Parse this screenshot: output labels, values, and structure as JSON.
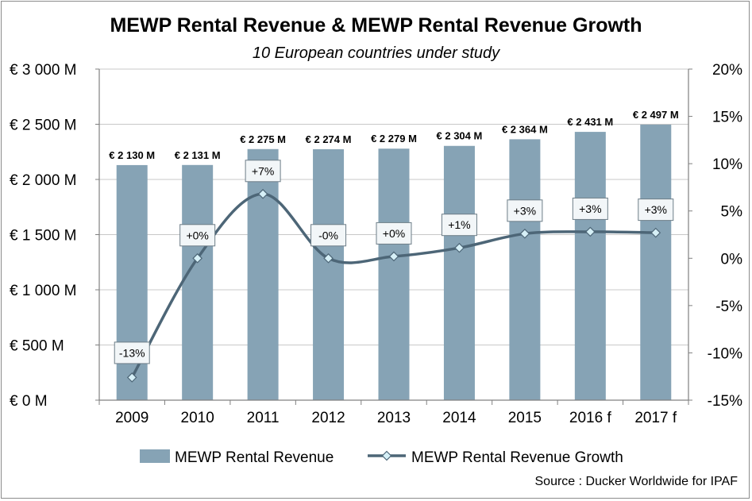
{
  "chart_data": {
    "type": "bar",
    "title": "MEWP Rental Revenue & MEWP Rental Revenue Growth",
    "subtitle": "10 European countries under study",
    "categories": [
      "2009",
      "2010",
      "2011",
      "2012",
      "2013",
      "2014",
      "2015",
      "2016 f",
      "2017 f"
    ],
    "series": [
      {
        "name": "MEWP Rental Revenue",
        "type": "bar",
        "axis": "left",
        "color": "#86a3b5",
        "values": [
          2130,
          2131,
          2275,
          2274,
          2279,
          2304,
          2364,
          2431,
          2497
        ],
        "labels": [
          "€ 2 130 M",
          "€ 2 131 M",
          "€ 2 275 M",
          "€ 2 274 M",
          "€ 2 279 M",
          "€ 2 304 M",
          "€ 2 364 M",
          "€ 2 431 M",
          "€ 2 497 M"
        ]
      },
      {
        "name": "MEWP Rental Revenue Growth",
        "type": "line",
        "axis": "right",
        "color": "#4d6677",
        "marker_color": "#d6f0f7",
        "values": [
          -12.6,
          0.0,
          6.8,
          0.0,
          0.2,
          1.1,
          2.6,
          2.8,
          2.7
        ],
        "labels": [
          "-13%",
          "+0%",
          "+7%",
          "-0%",
          "+0%",
          "+1%",
          "+3%",
          "+3%",
          "+3%"
        ]
      }
    ],
    "y_left": {
      "ylim": [
        0,
        3000
      ],
      "ticks": [
        0,
        500,
        1000,
        1500,
        2000,
        2500,
        3000
      ],
      "tick_labels": [
        "€ 0 M",
        "€  500 M",
        "€ 1 000 M",
        "€ 1 500 M",
        "€ 2 000 M",
        "€ 2 500 M",
        "€ 3 000 M"
      ]
    },
    "y_right": {
      "ylim": [
        -15,
        20
      ],
      "ticks": [
        -15,
        -10,
        -5,
        0,
        5,
        10,
        15,
        20
      ],
      "tick_labels": [
        "-15%",
        "-10%",
        "-5%",
        "0%",
        "5%",
        "10%",
        "15%",
        "20%"
      ]
    },
    "grid": true,
    "legend": "bottom",
    "source": "Source : Ducker Worldwide for IPAF"
  }
}
